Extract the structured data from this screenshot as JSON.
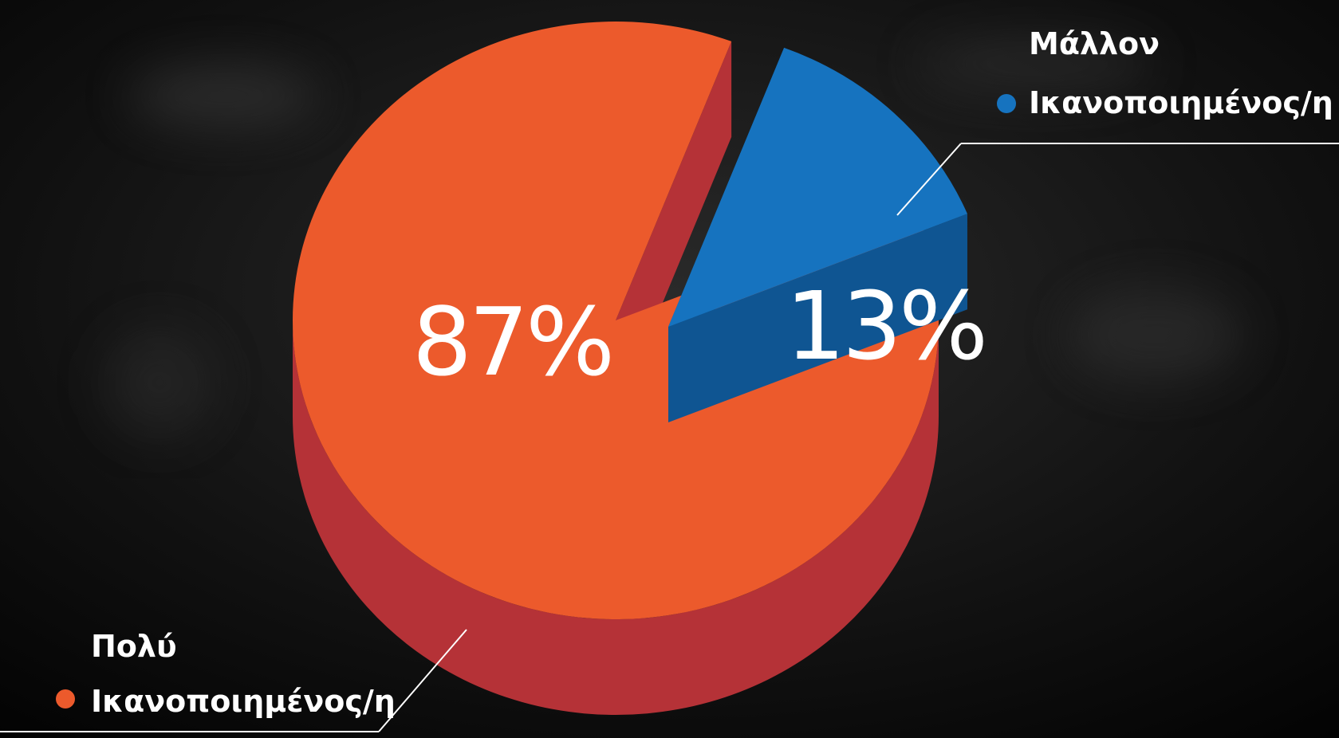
{
  "chart_data": {
    "type": "pie",
    "title": "",
    "series": [
      {
        "label_lines": [
          "Πολύ",
          "Ικανοποιημένος/η"
        ],
        "value": 87,
        "display": "87%",
        "color": "#ec5a2c",
        "side_color": "#b53237"
      },
      {
        "label_lines": [
          "Μάλλον",
          "Ικανοποιημένος/η"
        ],
        "value": 13,
        "display": "13%",
        "color": "#1673bf",
        "side_color": "#0f5592"
      }
    ],
    "legend_position": "top-right and bottom-left callouts"
  },
  "background_color": "#050505"
}
